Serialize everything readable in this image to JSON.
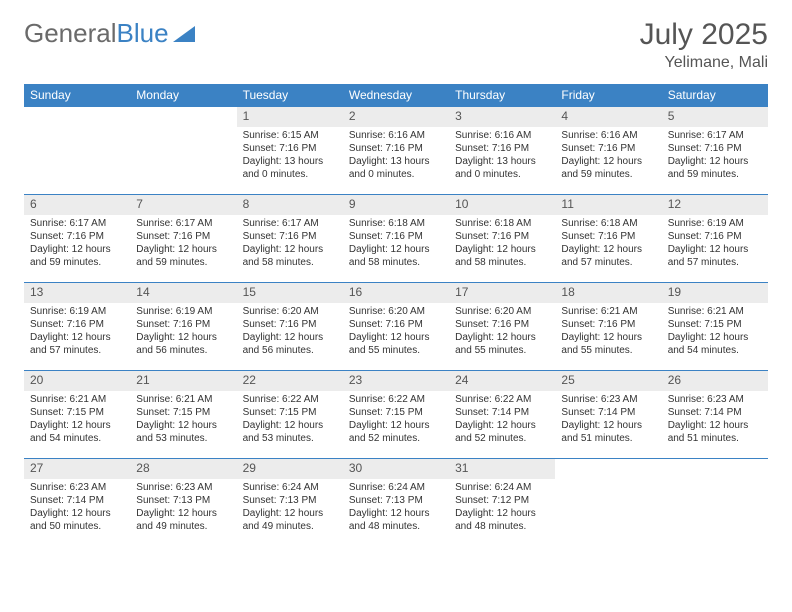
{
  "logo": {
    "part1": "General",
    "part2": "Blue",
    "tri_color": "#3b82c4"
  },
  "title": "July 2025",
  "location": "Yelimane, Mali",
  "header_bg": "#3b82c4",
  "header_fg": "#ffffff",
  "daynum_bg": "#ececec",
  "border_color": "#3b82c4",
  "text_color": "#333333",
  "bg_color": "#ffffff",
  "day_headers": [
    "Sunday",
    "Monday",
    "Tuesday",
    "Wednesday",
    "Thursday",
    "Friday",
    "Saturday"
  ],
  "weeks": [
    [
      {
        "n": "",
        "sr": "",
        "ss": "",
        "dl": ""
      },
      {
        "n": "",
        "sr": "",
        "ss": "",
        "dl": ""
      },
      {
        "n": "1",
        "sr": "Sunrise: 6:15 AM",
        "ss": "Sunset: 7:16 PM",
        "dl": "Daylight: 13 hours and 0 minutes."
      },
      {
        "n": "2",
        "sr": "Sunrise: 6:16 AM",
        "ss": "Sunset: 7:16 PM",
        "dl": "Daylight: 13 hours and 0 minutes."
      },
      {
        "n": "3",
        "sr": "Sunrise: 6:16 AM",
        "ss": "Sunset: 7:16 PM",
        "dl": "Daylight: 13 hours and 0 minutes."
      },
      {
        "n": "4",
        "sr": "Sunrise: 6:16 AM",
        "ss": "Sunset: 7:16 PM",
        "dl": "Daylight: 12 hours and 59 minutes."
      },
      {
        "n": "5",
        "sr": "Sunrise: 6:17 AM",
        "ss": "Sunset: 7:16 PM",
        "dl": "Daylight: 12 hours and 59 minutes."
      }
    ],
    [
      {
        "n": "6",
        "sr": "Sunrise: 6:17 AM",
        "ss": "Sunset: 7:16 PM",
        "dl": "Daylight: 12 hours and 59 minutes."
      },
      {
        "n": "7",
        "sr": "Sunrise: 6:17 AM",
        "ss": "Sunset: 7:16 PM",
        "dl": "Daylight: 12 hours and 59 minutes."
      },
      {
        "n": "8",
        "sr": "Sunrise: 6:17 AM",
        "ss": "Sunset: 7:16 PM",
        "dl": "Daylight: 12 hours and 58 minutes."
      },
      {
        "n": "9",
        "sr": "Sunrise: 6:18 AM",
        "ss": "Sunset: 7:16 PM",
        "dl": "Daylight: 12 hours and 58 minutes."
      },
      {
        "n": "10",
        "sr": "Sunrise: 6:18 AM",
        "ss": "Sunset: 7:16 PM",
        "dl": "Daylight: 12 hours and 58 minutes."
      },
      {
        "n": "11",
        "sr": "Sunrise: 6:18 AM",
        "ss": "Sunset: 7:16 PM",
        "dl": "Daylight: 12 hours and 57 minutes."
      },
      {
        "n": "12",
        "sr": "Sunrise: 6:19 AM",
        "ss": "Sunset: 7:16 PM",
        "dl": "Daylight: 12 hours and 57 minutes."
      }
    ],
    [
      {
        "n": "13",
        "sr": "Sunrise: 6:19 AM",
        "ss": "Sunset: 7:16 PM",
        "dl": "Daylight: 12 hours and 57 minutes."
      },
      {
        "n": "14",
        "sr": "Sunrise: 6:19 AM",
        "ss": "Sunset: 7:16 PM",
        "dl": "Daylight: 12 hours and 56 minutes."
      },
      {
        "n": "15",
        "sr": "Sunrise: 6:20 AM",
        "ss": "Sunset: 7:16 PM",
        "dl": "Daylight: 12 hours and 56 minutes."
      },
      {
        "n": "16",
        "sr": "Sunrise: 6:20 AM",
        "ss": "Sunset: 7:16 PM",
        "dl": "Daylight: 12 hours and 55 minutes."
      },
      {
        "n": "17",
        "sr": "Sunrise: 6:20 AM",
        "ss": "Sunset: 7:16 PM",
        "dl": "Daylight: 12 hours and 55 minutes."
      },
      {
        "n": "18",
        "sr": "Sunrise: 6:21 AM",
        "ss": "Sunset: 7:16 PM",
        "dl": "Daylight: 12 hours and 55 minutes."
      },
      {
        "n": "19",
        "sr": "Sunrise: 6:21 AM",
        "ss": "Sunset: 7:15 PM",
        "dl": "Daylight: 12 hours and 54 minutes."
      }
    ],
    [
      {
        "n": "20",
        "sr": "Sunrise: 6:21 AM",
        "ss": "Sunset: 7:15 PM",
        "dl": "Daylight: 12 hours and 54 minutes."
      },
      {
        "n": "21",
        "sr": "Sunrise: 6:21 AM",
        "ss": "Sunset: 7:15 PM",
        "dl": "Daylight: 12 hours and 53 minutes."
      },
      {
        "n": "22",
        "sr": "Sunrise: 6:22 AM",
        "ss": "Sunset: 7:15 PM",
        "dl": "Daylight: 12 hours and 53 minutes."
      },
      {
        "n": "23",
        "sr": "Sunrise: 6:22 AM",
        "ss": "Sunset: 7:15 PM",
        "dl": "Daylight: 12 hours and 52 minutes."
      },
      {
        "n": "24",
        "sr": "Sunrise: 6:22 AM",
        "ss": "Sunset: 7:14 PM",
        "dl": "Daylight: 12 hours and 52 minutes."
      },
      {
        "n": "25",
        "sr": "Sunrise: 6:23 AM",
        "ss": "Sunset: 7:14 PM",
        "dl": "Daylight: 12 hours and 51 minutes."
      },
      {
        "n": "26",
        "sr": "Sunrise: 6:23 AM",
        "ss": "Sunset: 7:14 PM",
        "dl": "Daylight: 12 hours and 51 minutes."
      }
    ],
    [
      {
        "n": "27",
        "sr": "Sunrise: 6:23 AM",
        "ss": "Sunset: 7:14 PM",
        "dl": "Daylight: 12 hours and 50 minutes."
      },
      {
        "n": "28",
        "sr": "Sunrise: 6:23 AM",
        "ss": "Sunset: 7:13 PM",
        "dl": "Daylight: 12 hours and 49 minutes."
      },
      {
        "n": "29",
        "sr": "Sunrise: 6:24 AM",
        "ss": "Sunset: 7:13 PM",
        "dl": "Daylight: 12 hours and 49 minutes."
      },
      {
        "n": "30",
        "sr": "Sunrise: 6:24 AM",
        "ss": "Sunset: 7:13 PM",
        "dl": "Daylight: 12 hours and 48 minutes."
      },
      {
        "n": "31",
        "sr": "Sunrise: 6:24 AM",
        "ss": "Sunset: 7:12 PM",
        "dl": "Daylight: 12 hours and 48 minutes."
      },
      {
        "n": "",
        "sr": "",
        "ss": "",
        "dl": ""
      },
      {
        "n": "",
        "sr": "",
        "ss": "",
        "dl": ""
      }
    ]
  ]
}
